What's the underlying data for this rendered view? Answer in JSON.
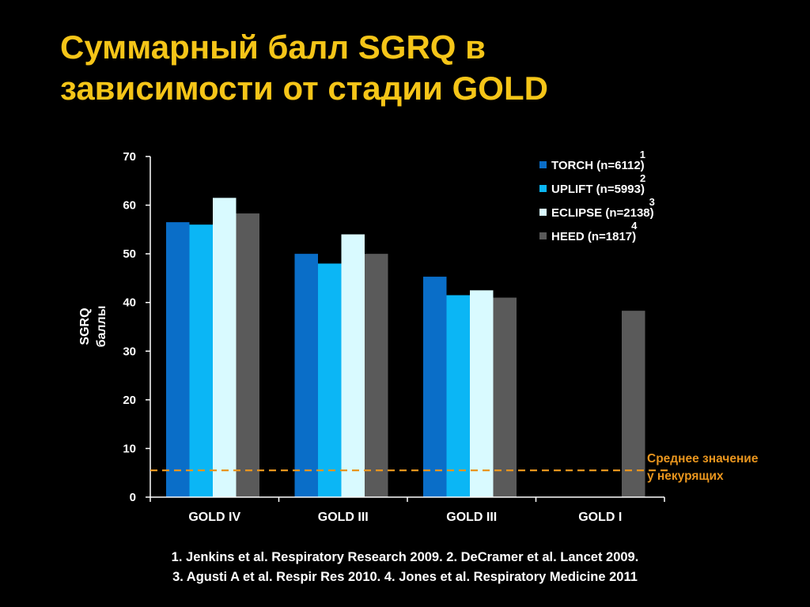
{
  "slide": {
    "title_lines": [
      "Суммарный балл SGRQ в",
      "зависимости от стадии GOLD"
    ],
    "references": [
      "1. Jenkins et al. Respiratory Research 2009. 2. DeCramer et al. Lancet 2009.",
      "3. Agusti A et al. Respir Res 2010. 4. Jones et al. Respiratory Medicine 2011"
    ]
  },
  "colors": {
    "background": "#000000",
    "title": "#F5C518",
    "TORCH": "#0A6EC8",
    "UPLIFT": "#0BB6F5",
    "ECLIPSE": "#D9FAFF",
    "HEED": "#5A5A5A",
    "nonsmoker_line": "#E8951E"
  },
  "chart_data": {
    "type": "bar",
    "categories": [
      "GOLD IV",
      "GOLD III",
      "GOLD III",
      "GOLD I"
    ],
    "ylabel_lines": [
      "SGRQ",
      "баллы"
    ],
    "ylim": [
      0,
      70
    ],
    "yticks": [
      0,
      10,
      20,
      30,
      40,
      50,
      60,
      70
    ],
    "grid": false,
    "legend_position": "top-right",
    "series": [
      {
        "name": "TORCH (n=6112)",
        "sup": "1",
        "values": [
          56.5,
          50,
          45.3,
          null
        ]
      },
      {
        "name": "UPLIFT (n=5993)",
        "sup": "2",
        "values": [
          56,
          48,
          41.5,
          null
        ]
      },
      {
        "name": "ECLIPSE (n=2138)",
        "sup": "3",
        "values": [
          61.5,
          54,
          42.5,
          null
        ]
      },
      {
        "name": "HEED (n=1817)",
        "sup": "4",
        "values": [
          58.3,
          50,
          41,
          38.3
        ]
      }
    ],
    "reference_line": {
      "value": 5.5,
      "label_lines": [
        "Среднее значение",
        "у некурящих"
      ]
    }
  }
}
